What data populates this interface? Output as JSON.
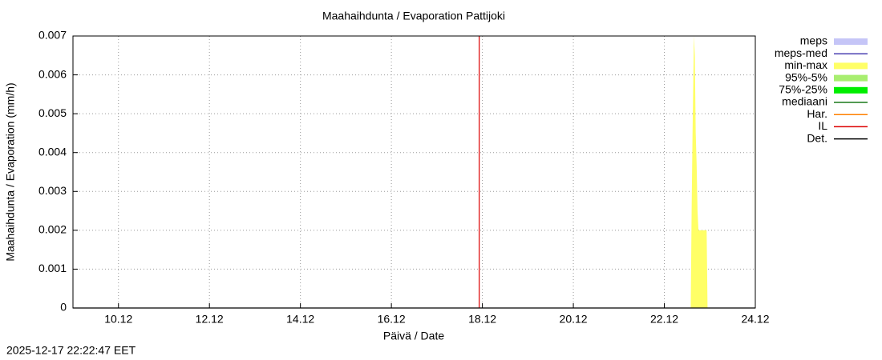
{
  "chart_data": {
    "type": "area",
    "title": "Maahaihdunta / Evaporation  Pattijoki",
    "xlabel": "Päivä / Date",
    "ylabel": "Maahaihdunta / Evaporation (mm/h)",
    "footer": "2025-12-17 22:22:47 EET",
    "xlim": [
      9,
      24
    ],
    "xticks": [
      {
        "value": 10,
        "label": "10.12"
      },
      {
        "value": 12,
        "label": "12.12"
      },
      {
        "value": 14,
        "label": "14.12"
      },
      {
        "value": 16,
        "label": "16.12"
      },
      {
        "value": 18,
        "label": "18.12"
      },
      {
        "value": 20,
        "label": "20.12"
      },
      {
        "value": 22,
        "label": "22.12"
      },
      {
        "value": 24,
        "label": "24.12"
      }
    ],
    "ylim": [
      0,
      0.007
    ],
    "yticks": [
      0,
      0.001,
      0.002,
      0.003,
      0.004,
      0.005,
      0.006,
      0.007
    ],
    "grid": true,
    "legend": "right",
    "series": [
      {
        "name": "meps",
        "color": "#c5c5f7",
        "style": "band",
        "x": [],
        "values": []
      },
      {
        "name": "meps-med",
        "color": "#4a3fb0",
        "style": "line",
        "x": [],
        "values": []
      },
      {
        "name": "min-max",
        "color": "#ffff66",
        "style": "band",
        "x": [
          22.58,
          22.6,
          22.62,
          22.65,
          22.67,
          22.69,
          22.71,
          22.73,
          22.75,
          22.93,
          22.95
        ],
        "values": [
          0,
          0.0025,
          0.0045,
          0.007,
          0.0065,
          0.0045,
          0.0037,
          0.0025,
          0.002,
          0.002,
          0
        ]
      },
      {
        "name": "95%-5%",
        "color": "#a8ee70",
        "style": "band",
        "x": [],
        "values": []
      },
      {
        "name": "75%-25%",
        "color": "#00ee00",
        "style": "band",
        "x": [],
        "values": []
      },
      {
        "name": "mediaani",
        "color": "#1a7a1a",
        "style": "line",
        "x": [],
        "values": []
      },
      {
        "name": "Har.",
        "color": "#ff8000",
        "style": "line",
        "x": [],
        "values": []
      },
      {
        "name": "IL",
        "color": "#dd0000",
        "style": "line",
        "x": [
          17.93,
          17.93
        ],
        "values": [
          0,
          0.007
        ]
      },
      {
        "name": "Det.",
        "color": "#000000",
        "style": "line",
        "x": [
          9,
          24
        ],
        "values": [
          0,
          0
        ]
      }
    ]
  }
}
